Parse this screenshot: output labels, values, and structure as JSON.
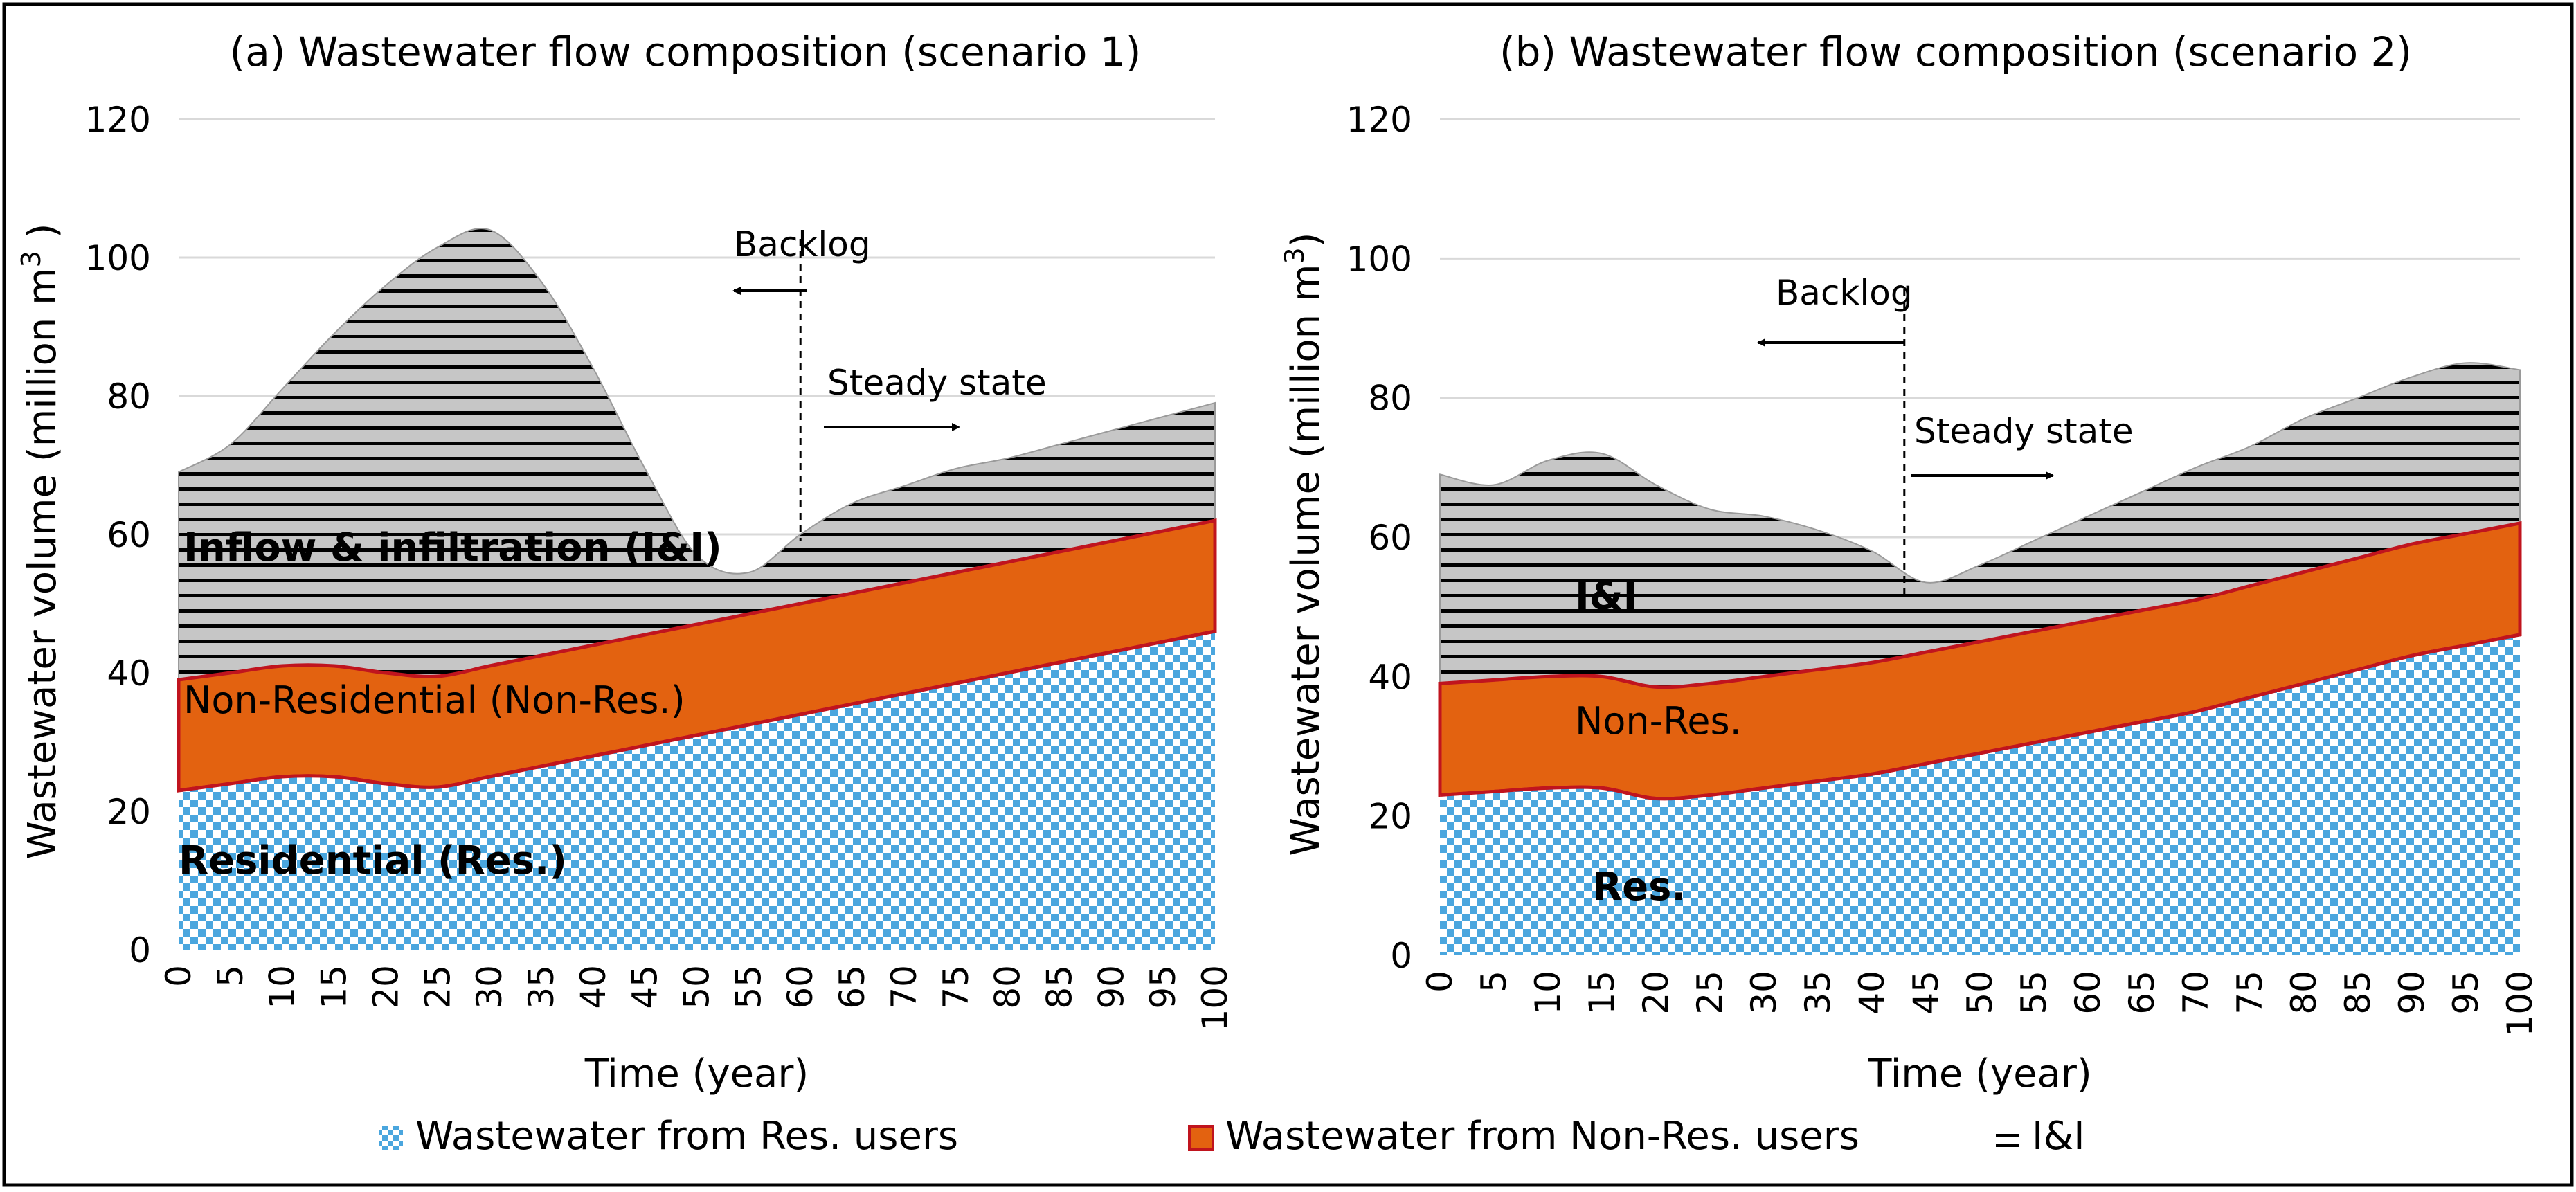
{
  "chart_data": [
    {
      "type": "area",
      "stacked": true,
      "title": "(a) Wastewater flow composition (scenario 1)",
      "xlabel": "Time (year)",
      "ylabel": "Wastewater volume (million m",
      "ylabel_sup": "3",
      "ylabel_close": " )",
      "xlim": [
        0,
        100
      ],
      "ylim": [
        0,
        120
      ],
      "grid": true,
      "x_ticks": [
        "0",
        "5",
        "10",
        "15",
        "20",
        "25",
        "30",
        "35",
        "40",
        "45",
        "50",
        "55",
        "60",
        "65",
        "70",
        "75",
        "80",
        "85",
        "90",
        "95",
        "100"
      ],
      "y_ticks": [
        "0",
        "20",
        "40",
        "60",
        "80",
        "100",
        "120"
      ],
      "x": [
        0,
        5,
        10,
        15,
        20,
        25,
        30,
        35,
        40,
        45,
        50,
        55,
        60,
        65,
        70,
        75,
        80,
        85,
        90,
        95,
        100
      ],
      "series": [
        {
          "name": "Wastewater from Res. users",
          "values": [
            23,
            24,
            25,
            25,
            24,
            23.5,
            25,
            26.5,
            28,
            29.5,
            31,
            32.5,
            34,
            35.5,
            37,
            38.5,
            40,
            41.5,
            43,
            44.5,
            46
          ]
        },
        {
          "name": "Wastewater from Non-Res. users",
          "values": [
            16,
            16,
            16,
            16,
            16,
            16,
            16,
            16,
            16,
            16,
            16,
            16,
            16,
            16,
            16,
            16,
            16,
            16,
            16,
            16,
            16
          ]
        },
        {
          "name": "I&I",
          "values": [
            30,
            33,
            40,
            48,
            56,
            62,
            63,
            54,
            40,
            24,
            10,
            6,
            10,
            13,
            14,
            15,
            15,
            15.5,
            16,
            16.5,
            17
          ]
        }
      ],
      "totals": [
        69,
        73,
        81,
        89,
        96,
        101.5,
        104,
        96.5,
        84,
        69.5,
        57,
        54.5,
        60,
        64.5,
        67,
        69.5,
        71,
        73,
        75,
        77,
        79
      ],
      "annotations": {
        "backlog": "Backlog",
        "steady_state": "Steady state",
        "divider_x": 60,
        "label_ii": "Inflow & infiltration (I&I)",
        "label_nonres": "Non-Residential (Non-Res.)",
        "label_res": "Residential (Res.)"
      }
    },
    {
      "type": "area",
      "stacked": true,
      "title": "(b) Wastewater flow composition (scenario 2)",
      "xlabel": "Time (year)",
      "ylabel": "Wastewater volume (million m",
      "ylabel_sup": "3",
      "ylabel_close": ")",
      "xlim": [
        0,
        100
      ],
      "ylim": [
        0,
        120
      ],
      "grid": true,
      "x_ticks": [
        "0",
        "5",
        "10",
        "15",
        "20",
        "25",
        "30",
        "35",
        "40",
        "45",
        "50",
        "55",
        "60",
        "65",
        "70",
        "75",
        "80",
        "85",
        "90",
        "95",
        "100"
      ],
      "y_ticks": [
        "0",
        "20",
        "40",
        "60",
        "80",
        "100",
        "120"
      ],
      "x": [
        0,
        5,
        10,
        15,
        20,
        25,
        30,
        35,
        40,
        45,
        50,
        55,
        60,
        65,
        70,
        75,
        80,
        85,
        90,
        95,
        100
      ],
      "series": [
        {
          "name": "Wastewater from Res. users",
          "values": [
            23,
            23.5,
            24,
            24,
            22.5,
            23,
            24,
            25,
            26,
            27.5,
            29,
            30.5,
            32,
            33.5,
            35,
            37,
            39,
            41,
            43,
            44.5,
            46
          ]
        },
        {
          "name": "Wastewater from Non-Res. users",
          "values": [
            16,
            16,
            16,
            16,
            16,
            16,
            16,
            16,
            16,
            16,
            16,
            16,
            16,
            16,
            16,
            16,
            16,
            16,
            16,
            16,
            16
          ]
        },
        {
          "name": "I&I",
          "values": [
            30,
            28,
            31,
            32,
            29,
            25,
            23,
            20,
            16,
            10,
            11,
            13,
            15,
            17,
            19,
            20,
            22,
            23,
            24,
            24.5,
            22
          ]
        }
      ],
      "totals": [
        69,
        67.5,
        71,
        72,
        67.5,
        64,
        63,
        61,
        58,
        53.5,
        56,
        59.5,
        63,
        66.5,
        70,
        73,
        77,
        80,
        83,
        85,
        84
      ],
      "annotations": {
        "backlog": "Backlog",
        "steady_state": "Steady state",
        "divider_x": 43,
        "label_ii": "I&I",
        "label_nonres": "Non-Res.",
        "label_res": "Res."
      }
    }
  ],
  "legend": {
    "placement": "bottom",
    "items": [
      {
        "label": "Wastewater from Res. users",
        "pattern": "checker-blue"
      },
      {
        "label": "Wastewater from Non-Res. users",
        "pattern": "solid-orange"
      },
      {
        "label": "I&I",
        "pattern": "horizontal-stripes"
      }
    ]
  },
  "colors": {
    "res_blue": "#4aa6de",
    "nonres_orange": "#e36210",
    "nonres_outline": "#c0141e",
    "ii_gray": "#bfbfbf",
    "stripe": "#000000",
    "grid": "#d9d9d9",
    "frame": "#000000"
  }
}
